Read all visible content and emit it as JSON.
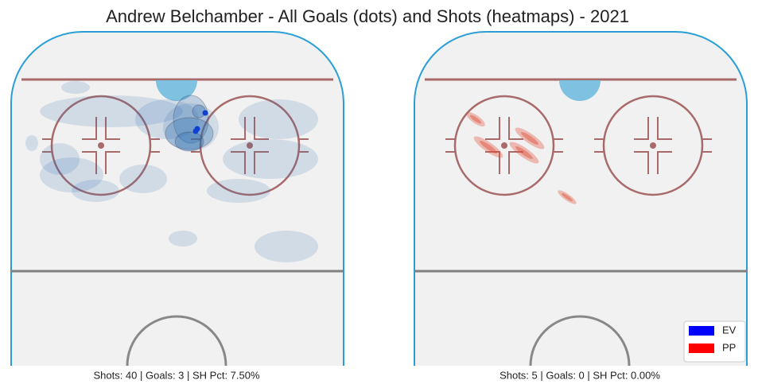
{
  "chart_data": {
    "type": "rink",
    "title": "Andrew Belchamber - All Goals (dots) and Shots (heatmaps) - 2021",
    "panels": [
      {
        "caption": "Shots: 40 | Goals: 3 | SH Pct: 7.50%",
        "color": "#2b6cb0"
      },
      {
        "caption": "Shots: 5 | Goals: 0 | SH Pct: 0.00%",
        "color": "#e0503a"
      }
    ],
    "legend": [
      {
        "name": "EV",
        "color": "#0000ff"
      },
      {
        "name": "PP",
        "color": "#ff0000"
      }
    ]
  }
}
